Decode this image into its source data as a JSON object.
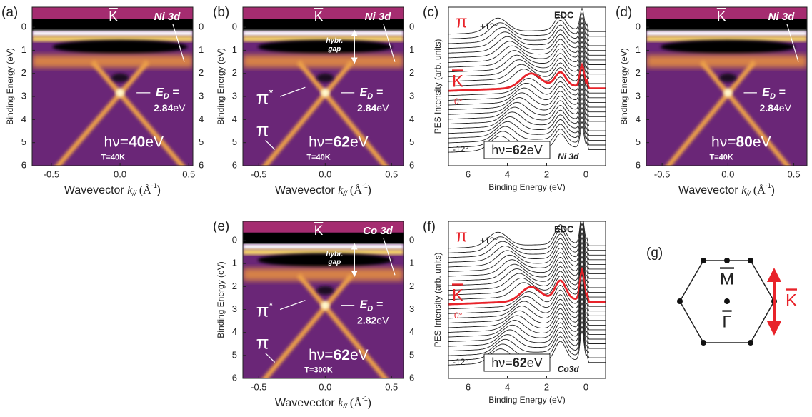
{
  "figure": {
    "panels": [
      {
        "label": "(a)",
        "kind": "arpes",
        "right_ticks": true,
        "ylabel": "Binding Energy (eV)",
        "xlabel": [
          "Wavevector ",
          "k",
          "//",
          " (Å",
          "-1",
          ")"
        ],
        "xlim": [
          -0.64,
          0.53
        ],
        "ylim": [
          -0.87,
          6
        ],
        "xticks": [
          -0.5,
          {
            "value": 0,
            "label": "0.0"
          },
          0.5
        ],
        "yticks": [
          0,
          1,
          2,
          3,
          4,
          5,
          6
        ],
        "k_point": "K",
        "d_level": "Ni 3d",
        "dirac": {
          "label": [
            "E",
            "D",
            " ="
          ],
          "value": 2.84,
          "unit": "eV"
        },
        "photon": {
          "prefix": "hν=",
          "value": 40,
          "unit": "eV"
        },
        "temperature": "T=40K"
      },
      {
        "label": "(b)",
        "kind": "arpes",
        "right_ticks": true,
        "ylabel": "Binding Energy (eV)",
        "xlabel": [
          "Wavevector ",
          "k",
          "//",
          " (Å",
          "-1",
          ")"
        ],
        "xlim": [
          -0.62,
          0.59
        ],
        "ylim": [
          -0.87,
          6
        ],
        "xticks": [
          -0.5,
          {
            "value": 0,
            "label": "0.0"
          },
          0.5
        ],
        "yticks": [
          0,
          1,
          2,
          3,
          4,
          5,
          6
        ],
        "k_point": "K",
        "d_level": "Ni 3d",
        "gap_label": [
          "hybr.",
          "gap"
        ],
        "pi_star": [
          "π",
          "*"
        ],
        "pi": "π",
        "dirac": {
          "label": [
            "E",
            "D",
            " ="
          ],
          "value": 2.84,
          "unit": "eV"
        },
        "photon": {
          "prefix": "hν=",
          "value": 62,
          "unit": "eV"
        },
        "temperature": "T=40K"
      },
      {
        "label": "(c)",
        "kind": "edc",
        "ylabel": "PES Intensity (arb. units)",
        "xlabel": "Binding Energy (eV)",
        "xlim": [
          7,
          -1
        ],
        "xticks": [
          6,
          4,
          2,
          0
        ],
        "title": "EDC",
        "pi": "π",
        "k_point": "K",
        "angles": [
          "+12°",
          "0°",
          "-12°"
        ],
        "photon": {
          "prefix": "hν=",
          "value": 62,
          "unit": "eV"
        },
        "d_level": "Ni 3d"
      },
      {
        "label": "(d)",
        "kind": "arpes",
        "right_ticks": false,
        "ylabel": "Binding Energy (eV)",
        "xlabel": [
          "Wavevector ",
          "k",
          "//",
          " (Å",
          "-1",
          ")"
        ],
        "xlim": [
          -0.62,
          0.6
        ],
        "ylim": [
          -0.87,
          6
        ],
        "xticks": [
          -0.5,
          {
            "value": 0,
            "label": "0.0"
          },
          0.5
        ],
        "yticks": [
          0,
          1,
          2,
          3,
          4,
          5,
          6
        ],
        "k_point": "K",
        "d_level": "Ni 3d",
        "dirac": {
          "label": [
            "E",
            "D",
            " ="
          ],
          "value": 2.84,
          "unit": "eV"
        },
        "photon": {
          "prefix": "hν=",
          "value": 80,
          "unit": "eV"
        },
        "temperature": "T=40K"
      },
      {
        "label": "(e)",
        "kind": "arpes",
        "right_ticks": true,
        "ylabel": "Binding Energy (eV)",
        "xlabel": [
          "Wavevector ",
          "k",
          "//",
          " (Å",
          "-1",
          ")"
        ],
        "xlim": [
          -0.62,
          0.59
        ],
        "ylim": [
          -0.84,
          6
        ],
        "xticks": [
          -0.5,
          {
            "value": 0,
            "label": "0.0"
          },
          0.5
        ],
        "yticks": [
          0,
          1,
          2,
          3,
          4,
          5,
          6
        ],
        "k_point": "K",
        "d_level": "Co 3d",
        "gap_label": [
          "hybr.",
          "gap"
        ],
        "pi_star": [
          "π",
          "*"
        ],
        "pi": "π",
        "dirac": {
          "label": [
            "E",
            "D",
            " ="
          ],
          "value": 2.82,
          "unit": "eV"
        },
        "photon": {
          "prefix": "hν=",
          "value": 62,
          "unit": "eV"
        },
        "temperature": "T=300K"
      },
      {
        "label": "(f)",
        "kind": "edc",
        "ylabel": "PES Intensity (arb. units)",
        "xlabel": "Binding Energy (eV)",
        "xlim": [
          7,
          -1
        ],
        "xticks": [
          6,
          4,
          2,
          0
        ],
        "title": "EDC",
        "pi": "π",
        "k_point": "K",
        "angles": [
          "+12°",
          "0°",
          "-12°"
        ],
        "photon": {
          "prefix": "hν=",
          "value": 62,
          "unit": "eV"
        },
        "d_level": "Co3d"
      }
    ],
    "bz": {
      "label": "(g)",
      "m_point": "M",
      "gamma_point": "Γ",
      "k_point": "K"
    }
  }
}
